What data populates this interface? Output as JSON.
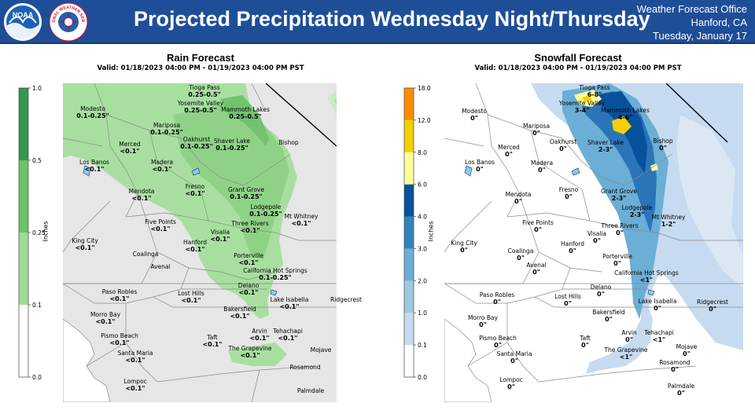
{
  "header": {
    "title": "Projected Precipitation Wednesday Night/Thursday",
    "office_line1": "Weather Forecast Office",
    "office_line2": "Hanford, CA",
    "office_line3": "Tuesday, January 17",
    "background_color": "#1f4e99",
    "logos": [
      "noaa-logo",
      "nws-logo"
    ],
    "logo_text": {
      "noaa": "NOAA",
      "nws": "NATIONAL WEATHER SERVICE"
    }
  },
  "rain": {
    "title": "Rain Forecast",
    "valid": "Valid: 01/18/2023 04:00 PM - 01/19/2023 04:00 PM PST",
    "colorbar": {
      "axis_label": "Inches",
      "ticks": [
        "1.0",
        "0.5",
        "0.25",
        "0.1",
        "0.0"
      ],
      "bins": [
        {
          "from": "0.0",
          "to": "0.1",
          "color": "#ffffff"
        },
        {
          "from": "0.1",
          "to": "0.25",
          "color": "#9fdc96"
        },
        {
          "from": "0.25",
          "to": "0.5",
          "color": "#6cc36a"
        },
        {
          "from": "0.5",
          "to": "1.0",
          "color": "#2f9a4a"
        }
      ]
    },
    "cities": [
      {
        "name": "Tioga Pass",
        "value": "0.25-0.5\""
      },
      {
        "name": "Yosemite Valley",
        "value": "0.25-0.5\""
      },
      {
        "name": "Mammoth Lakes",
        "value": "0.25-0.5\""
      },
      {
        "name": "Modesto",
        "value": "0.1-0.25\""
      },
      {
        "name": "Mariposa",
        "value": "0.1-0.25\""
      },
      {
        "name": "Oakhurst",
        "value": "0.1-0.25\""
      },
      {
        "name": "Shaver Lake",
        "value": "0.1-0.25\""
      },
      {
        "name": "Bishop",
        "value": ""
      },
      {
        "name": "Merced",
        "value": "<0.1\""
      },
      {
        "name": "Los Banos",
        "value": "<0.1\""
      },
      {
        "name": "Madera",
        "value": "<0.1\""
      },
      {
        "name": "Fresno",
        "value": "<0.1\""
      },
      {
        "name": "Grant Grove",
        "value": "0.1-0.25\""
      },
      {
        "name": "Mendota",
        "value": "<0.1\""
      },
      {
        "name": "Lodgepole",
        "value": "0.1-0.25\""
      },
      {
        "name": "Mt Whitney",
        "value": "<0.1\""
      },
      {
        "name": "Five Points",
        "value": "<0.1\""
      },
      {
        "name": "Three Rivers",
        "value": "<0.1\""
      },
      {
        "name": "King City",
        "value": "<0.1\""
      },
      {
        "name": "Hanford",
        "value": "<0.1\""
      },
      {
        "name": "Visalia",
        "value": "<0.1\""
      },
      {
        "name": "Coalinga",
        "value": ""
      },
      {
        "name": "Porterville",
        "value": "<0.1\""
      },
      {
        "name": "Avenal",
        "value": ""
      },
      {
        "name": "California Hot Springs",
        "value": "0.1-0.25\""
      },
      {
        "name": "Paso Robles",
        "value": "<0.1\""
      },
      {
        "name": "Lost Hills",
        "value": "<0.1\""
      },
      {
        "name": "Delano",
        "value": "<0.1\""
      },
      {
        "name": "Lake Isabella",
        "value": "<0.1\""
      },
      {
        "name": "Ridgecrest",
        "value": ""
      },
      {
        "name": "Morro Bay",
        "value": "<0.1\""
      },
      {
        "name": "Bakersfield",
        "value": "<0.1\""
      },
      {
        "name": "Pismo Beach",
        "value": "<0.1\""
      },
      {
        "name": "Taft",
        "value": "<0.1\""
      },
      {
        "name": "Arvin",
        "value": "<0.1\""
      },
      {
        "name": "Tehachapi",
        "value": "<0.1\""
      },
      {
        "name": "Santa Maria",
        "value": "<0.1\""
      },
      {
        "name": "The Grapevine",
        "value": "<0.1\""
      },
      {
        "name": "Mojave",
        "value": ""
      },
      {
        "name": "Rosamond",
        "value": ""
      },
      {
        "name": "Lompoc",
        "value": "<0.1\""
      },
      {
        "name": "Palmdale",
        "value": ""
      }
    ]
  },
  "snow": {
    "title": "Snowfall Forecast",
    "valid": "Valid: 01/18/2023 04:00 PM - 01/19/2023 04:00 PM PST",
    "colorbar": {
      "axis_label": "Inches",
      "ticks": [
        "18.0",
        "12.0",
        "8.0",
        "6.0",
        "4.0",
        "3.0",
        "2.0",
        "1.0",
        "0.1",
        "0.0"
      ],
      "bins": [
        {
          "from": "0.0",
          "to": "0.1",
          "color": "#ffffff"
        },
        {
          "from": "0.1",
          "to": "1.0",
          "color": "#c6dbef"
        },
        {
          "from": "1.0",
          "to": "2.0",
          "color": "#9ecae1"
        },
        {
          "from": "2.0",
          "to": "3.0",
          "color": "#6baed6"
        },
        {
          "from": "3.0",
          "to": "4.0",
          "color": "#3182bd"
        },
        {
          "from": "4.0",
          "to": "6.0",
          "color": "#08519c"
        },
        {
          "from": "6.0",
          "to": "8.0",
          "color": "#ffff99"
        },
        {
          "from": "8.0",
          "to": "12.0",
          "color": "#f5d000"
        },
        {
          "from": "12.0",
          "to": "18.0",
          "color": "#ff8c00"
        }
      ]
    },
    "cities": [
      {
        "name": "Tioga Pass",
        "value": "6-8\""
      },
      {
        "name": "Yosemite Valley",
        "value": "3-4\""
      },
      {
        "name": "Mammoth Lakes",
        "value": "4-6\""
      },
      {
        "name": "Modesto",
        "value": "0\""
      },
      {
        "name": "Mariposa",
        "value": "0\""
      },
      {
        "name": "Oakhurst",
        "value": "0\""
      },
      {
        "name": "Shaver Lake",
        "value": "2-3\""
      },
      {
        "name": "Bishop",
        "value": "0\""
      },
      {
        "name": "Merced",
        "value": "0\""
      },
      {
        "name": "Los Banos",
        "value": "0\""
      },
      {
        "name": "Madera",
        "value": "0\""
      },
      {
        "name": "Fresno",
        "value": "0\""
      },
      {
        "name": "Grant Grove",
        "value": "2-3\""
      },
      {
        "name": "Mendota",
        "value": "0\""
      },
      {
        "name": "Lodgepole",
        "value": "2-3\""
      },
      {
        "name": "Mt Whitney",
        "value": "1-2\""
      },
      {
        "name": "Five Points",
        "value": "0\""
      },
      {
        "name": "Three Rivers",
        "value": "0\""
      },
      {
        "name": "King City",
        "value": "0\""
      },
      {
        "name": "Hanford",
        "value": "0\""
      },
      {
        "name": "Visalia",
        "value": "0\""
      },
      {
        "name": "Coalinga",
        "value": "0\""
      },
      {
        "name": "Porterville",
        "value": "0\""
      },
      {
        "name": "Avenal",
        "value": "0\""
      },
      {
        "name": "California Hot Springs",
        "value": "<1\""
      },
      {
        "name": "Paso Robles",
        "value": "0\""
      },
      {
        "name": "Lost Hills",
        "value": "0\""
      },
      {
        "name": "Delano",
        "value": "0\""
      },
      {
        "name": "Lake Isabella",
        "value": "0\""
      },
      {
        "name": "Ridgecrest",
        "value": "0\""
      },
      {
        "name": "Morro Bay",
        "value": "0\""
      },
      {
        "name": "Bakersfield",
        "value": "0\""
      },
      {
        "name": "Pismo Beach",
        "value": "0\""
      },
      {
        "name": "Taft",
        "value": "0\""
      },
      {
        "name": "Arvin",
        "value": "0\""
      },
      {
        "name": "Tehachapi",
        "value": "<1\""
      },
      {
        "name": "Santa Maria",
        "value": "0\""
      },
      {
        "name": "The Grapevine",
        "value": "<1\""
      },
      {
        "name": "Mojave",
        "value": "0\""
      },
      {
        "name": "Rosamond",
        "value": "0\""
      },
      {
        "name": "Lompoc",
        "value": "0\""
      },
      {
        "name": "Palmdale",
        "value": "0\""
      }
    ]
  }
}
